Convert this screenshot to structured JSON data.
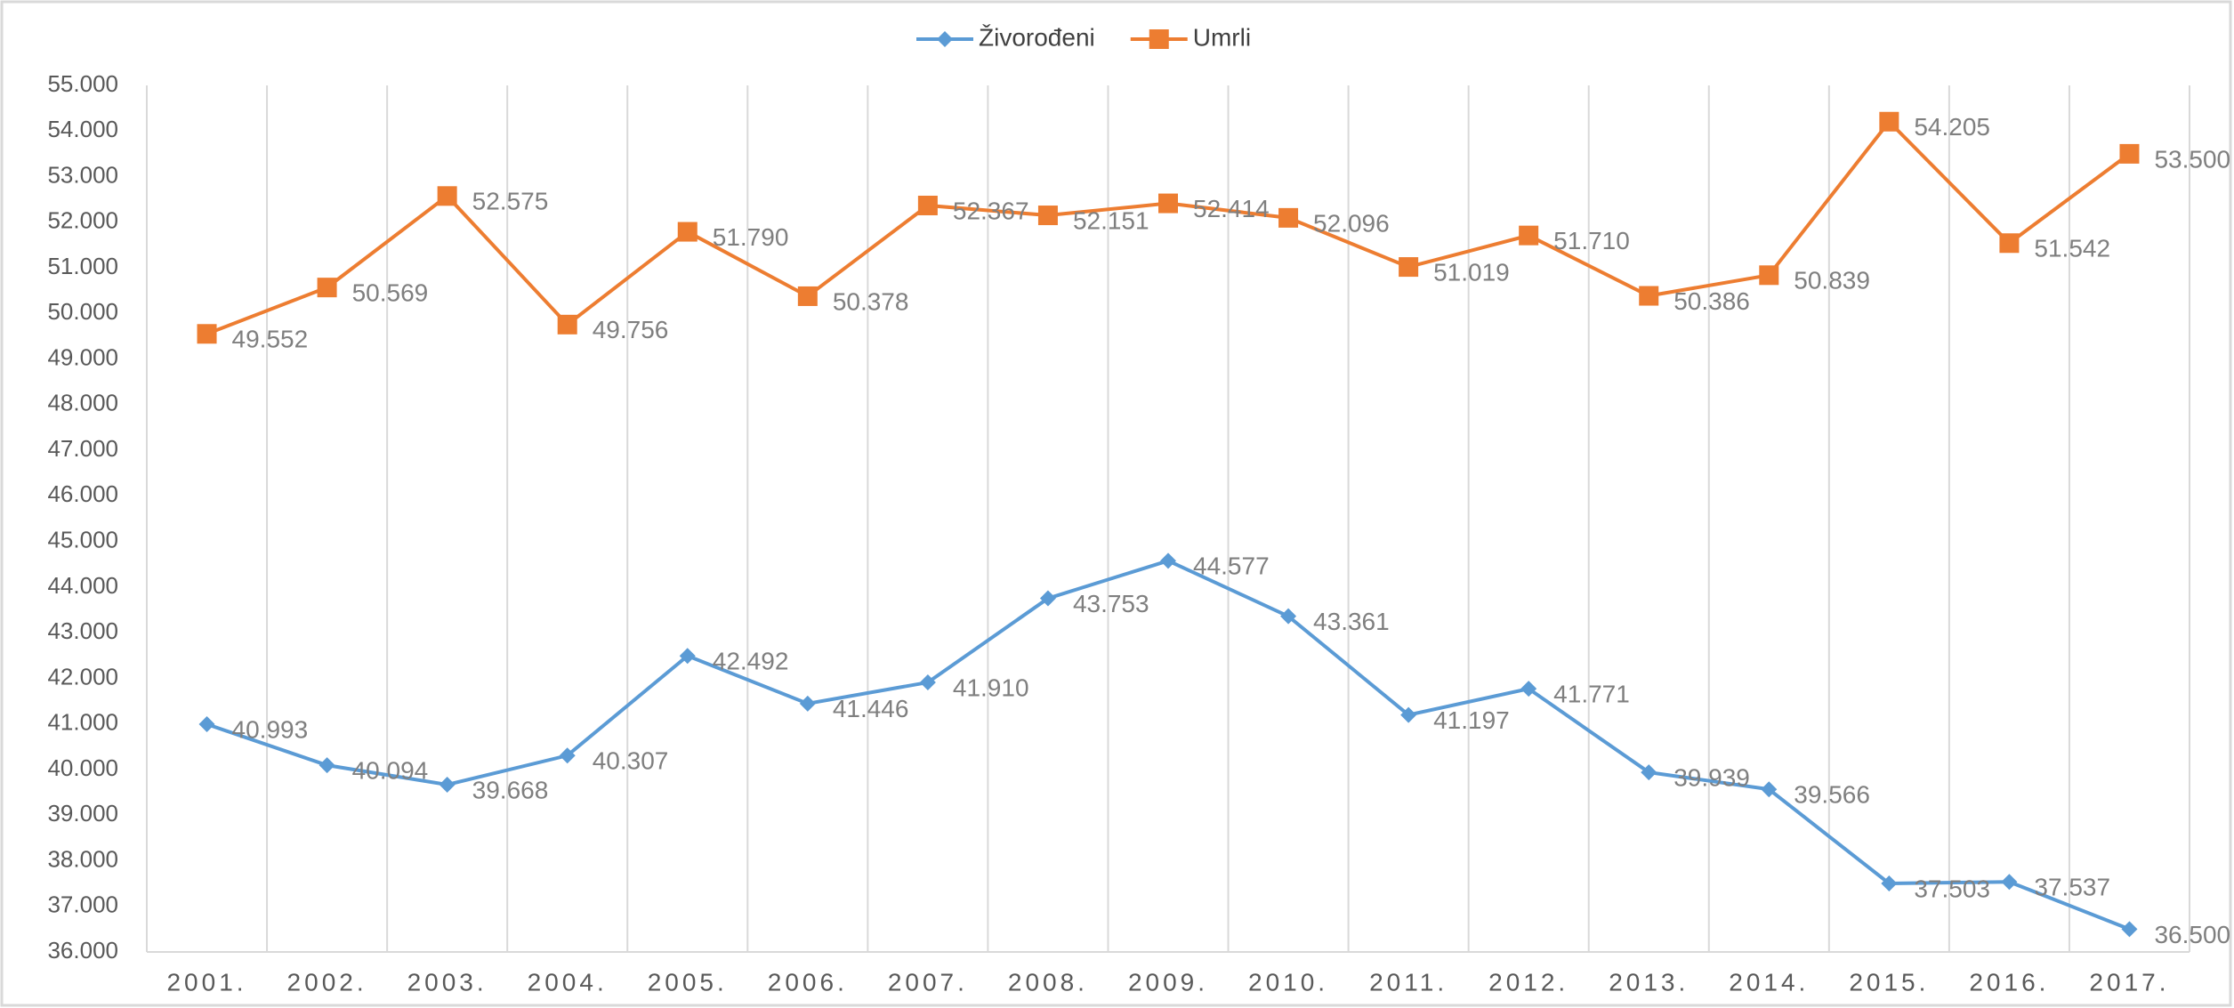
{
  "chart_data": {
    "type": "line",
    "categories": [
      "2001.",
      "2002.",
      "2003.",
      "2004.",
      "2005.",
      "2006.",
      "2007.",
      "2008.",
      "2009.",
      "2010.",
      "2011.",
      "2012.",
      "2013.",
      "2014.",
      "2015.",
      "2016.",
      "2017."
    ],
    "series": [
      {
        "name": "Živorođeni",
        "color": "#5b9bd5",
        "values": [
          40993,
          40094,
          39668,
          40307,
          42492,
          41446,
          41910,
          43753,
          44577,
          43361,
          41197,
          41771,
          39939,
          39566,
          37503,
          37537,
          36500
        ],
        "value_labels": [
          "40.993",
          "40.094",
          "39.668",
          "40.307",
          "42.492",
          "41.446",
          "41.910",
          "43.753",
          "44.577",
          "43.361",
          "41.197",
          "41.771",
          "39.939",
          "39.566",
          "37.503",
          "37.537",
          "36.500"
        ]
      },
      {
        "name": "Umrli",
        "color": "#ed7d31",
        "values": [
          49552,
          50569,
          52575,
          49756,
          51790,
          50378,
          52367,
          52151,
          52414,
          52096,
          51019,
          51710,
          50386,
          50839,
          54205,
          51542,
          53500
        ],
        "value_labels": [
          "49.552",
          "50.569",
          "52.575",
          "49.756",
          "51.790",
          "50.378",
          "52.367",
          "52.151",
          "52.414",
          "52.096",
          "51.019",
          "51.710",
          "50.386",
          "50.839",
          "54.205",
          "51.542",
          "53.500"
        ]
      }
    ],
    "ylim": [
      36000,
      55000
    ],
    "yticks": [
      {
        "value": 36000,
        "label": "36.000"
      },
      {
        "value": 37000,
        "label": "37.000"
      },
      {
        "value": 38000,
        "label": "38.000"
      },
      {
        "value": 39000,
        "label": "39.000"
      },
      {
        "value": 40000,
        "label": "40.000"
      },
      {
        "value": 41000,
        "label": "41.000"
      },
      {
        "value": 42000,
        "label": "42.000"
      },
      {
        "value": 43000,
        "label": "43.000"
      },
      {
        "value": 44000,
        "label": "44.000"
      },
      {
        "value": 45000,
        "label": "45.000"
      },
      {
        "value": 46000,
        "label": "46.000"
      },
      {
        "value": 47000,
        "label": "47.000"
      },
      {
        "value": 48000,
        "label": "48.000"
      },
      {
        "value": 49000,
        "label": "49.000"
      },
      {
        "value": 50000,
        "label": "50.000"
      },
      {
        "value": 51000,
        "label": "51.000"
      },
      {
        "value": 52000,
        "label": "52.000"
      },
      {
        "value": 53000,
        "label": "53.000"
      },
      {
        "value": 54000,
        "label": "54.000"
      },
      {
        "value": 55000,
        "label": "55.000"
      }
    ],
    "legend": "top"
  }
}
